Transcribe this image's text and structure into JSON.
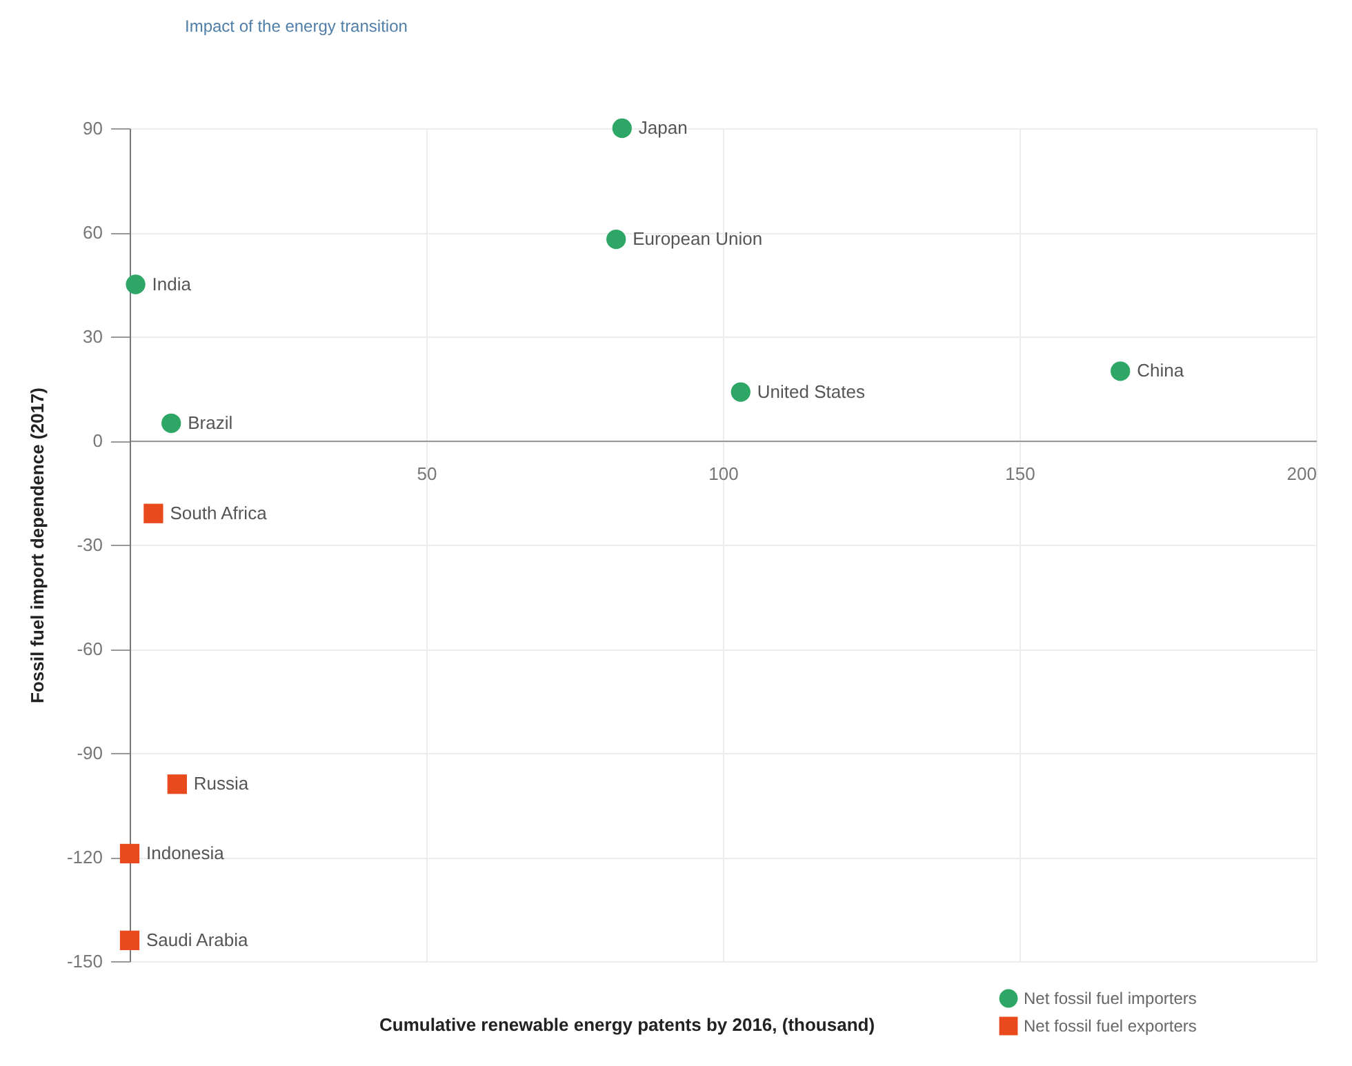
{
  "chart_data": {
    "type": "scatter",
    "title": "Impact of the energy transition",
    "xlabel": "Cumulative renewable energy patents by 2016, (thousand)",
    "ylabel": "Fossil fuel import dependence (2017)",
    "xlim": [
      0,
      200
    ],
    "xticks": [
      50,
      100,
      150,
      200
    ],
    "ylim": [
      -150,
      90
    ],
    "yticks": [
      -150,
      -120,
      -90,
      -60,
      -30,
      0,
      30,
      60,
      90
    ],
    "grid": true,
    "legend": "bottom right",
    "series": [
      {
        "name": "Net fossil fuel importers",
        "color": "#2ea665",
        "marker": "circle",
        "x": [
          83,
          82,
          1,
          7,
          103,
          167
        ],
        "values": [
          90,
          58,
          45,
          5,
          14,
          20
        ]
      },
      {
        "name": "Net fossil fuel exporters",
        "color": "#e8491d",
        "marker": "square",
        "x": [
          4,
          8,
          0,
          0
        ],
        "values": [
          -21,
          -99,
          -119,
          -144
        ]
      }
    ],
    "annotations": [
      {
        "text": "Japan",
        "x": 83,
        "y": 90
      },
      {
        "text": "European Union",
        "x": 82,
        "y": 58
      },
      {
        "text": "India",
        "x": 1,
        "y": 45
      },
      {
        "text": "Brazil",
        "x": 7,
        "y": 5
      },
      {
        "text": "United States",
        "x": 103,
        "y": 14
      },
      {
        "text": "China",
        "x": 167,
        "y": 20
      },
      {
        "text": "South Africa",
        "x": 4,
        "y": -21
      },
      {
        "text": "Russia",
        "x": 8,
        "y": -99
      },
      {
        "text": "Indonesia",
        "x": 0,
        "y": -119
      },
      {
        "text": "Saudi Arabia",
        "x": 0,
        "y": -144
      }
    ]
  }
}
